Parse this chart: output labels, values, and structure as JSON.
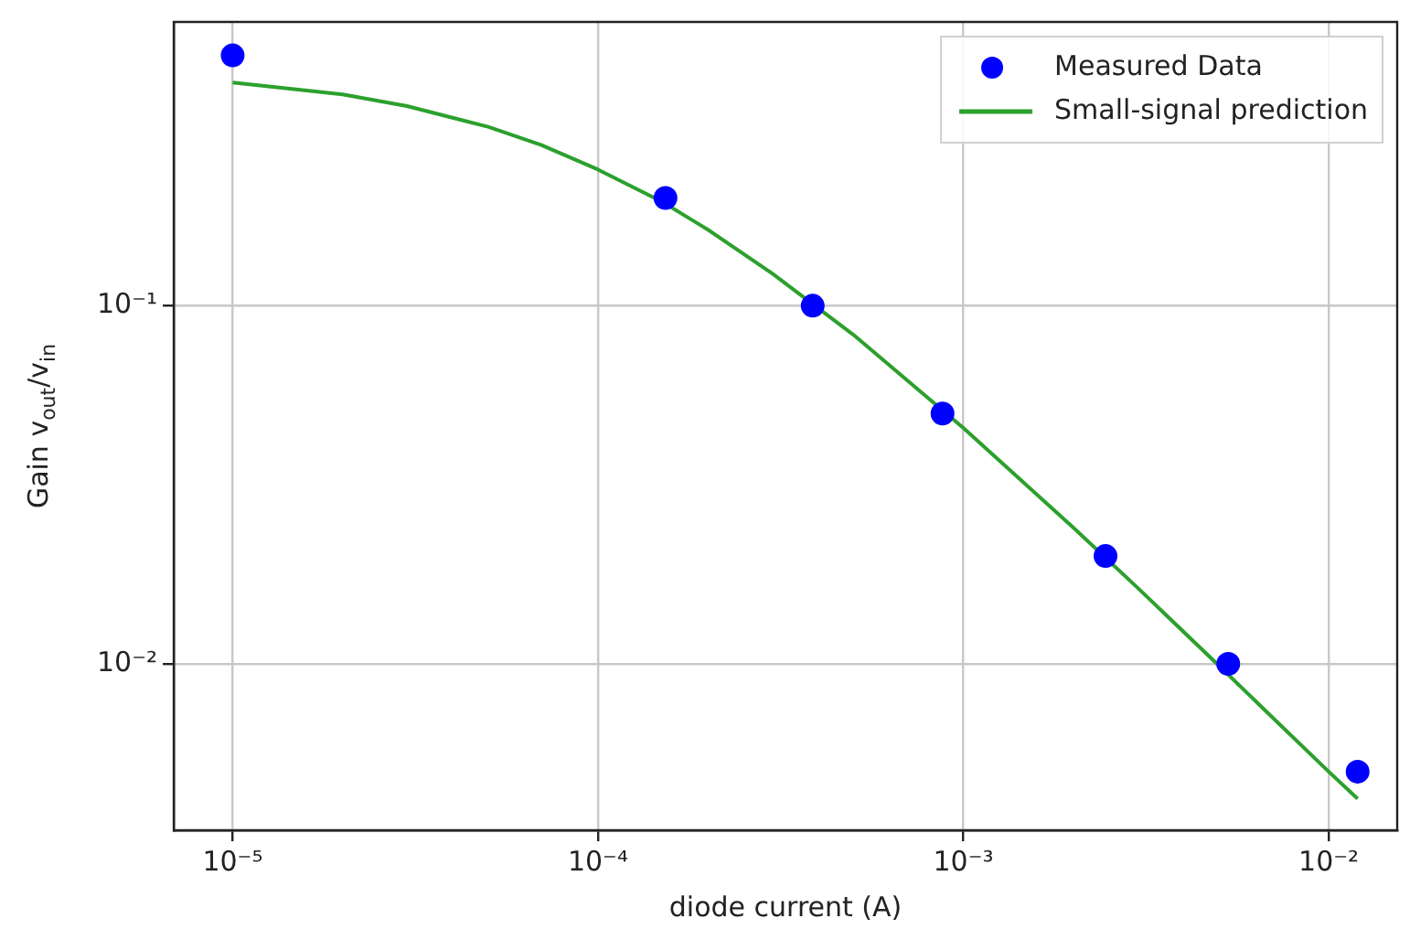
{
  "chart_data": {
    "type": "scatter",
    "xlabel": "diode current (A)",
    "ylabel": "Gain v$_{out}$/v$_{in}$",
    "log": "xy",
    "grid": true,
    "legend": "top right",
    "xlim": [
      6.9e-06,
      0.0154
    ],
    "ylim": [
      0.00343,
      0.62
    ],
    "xticks": [
      {
        "value": 1e-05,
        "label": "10⁻⁵"
      },
      {
        "value": 0.0001,
        "label": "10⁻⁴"
      },
      {
        "value": 0.001,
        "label": "10⁻³"
      },
      {
        "value": 0.01,
        "label": "10⁻²"
      }
    ],
    "yticks": [
      {
        "value": 0.01,
        "label": "10⁻²"
      },
      {
        "value": 0.1,
        "label": "10⁻¹"
      }
    ],
    "series": [
      {
        "name": "Measured Data",
        "type": "scatter",
        "marker": "circle",
        "color": "#0000ff",
        "x": [
          1e-05,
          0.000153,
          0.000387,
          0.000877,
          0.00245,
          0.00531,
          0.012
        ],
        "values": [
          0.5,
          0.2,
          0.1,
          0.05,
          0.02,
          0.01,
          0.005
        ]
      },
      {
        "name": "Small-signal prediction",
        "type": "line",
        "marker": "none",
        "line_style": "solid",
        "color": "#2ca02c",
        "x": [
          1e-05,
          2e-05,
          3e-05,
          5e-05,
          7e-05,
          0.0001,
          0.00015,
          0.0002,
          0.0003,
          0.0005,
          0.001,
          0.002,
          0.003,
          0.005,
          0.007,
          0.01,
          0.012
        ],
        "values": [
          0.42,
          0.389,
          0.361,
          0.316,
          0.281,
          0.24,
          0.195,
          0.163,
          0.123,
          0.083,
          0.0456,
          0.024,
          0.0163,
          0.0099,
          0.0071,
          0.005,
          0.0042
        ]
      }
    ]
  }
}
